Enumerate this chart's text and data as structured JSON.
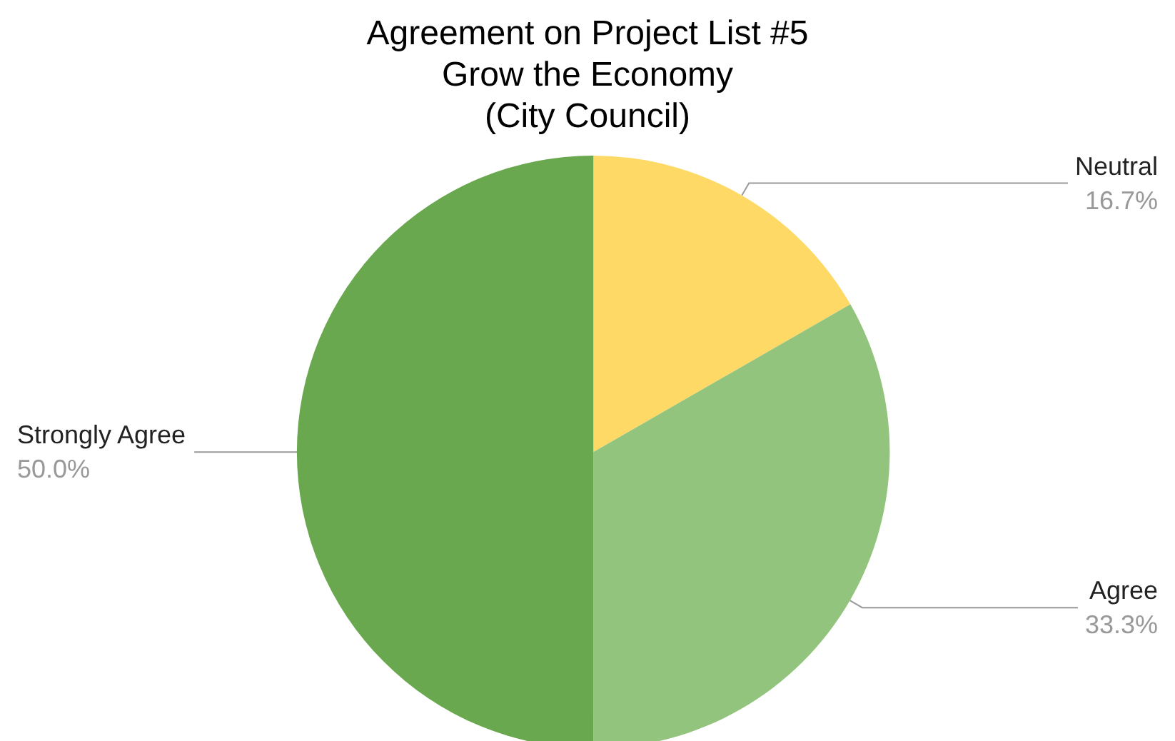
{
  "chart_data": {
    "type": "pie",
    "title": "Agreement on Project List #5\nGrow the Economy\n(City Council)",
    "categories": [
      "Neutral",
      "Agree",
      "Strongly Agree"
    ],
    "values": [
      16.7,
      33.3,
      50.0
    ],
    "value_labels": [
      "16.7%",
      "33.3%",
      "50.0%"
    ],
    "colors": [
      "#ffd966",
      "#93c47d",
      "#6aa84f"
    ],
    "legend": false
  }
}
